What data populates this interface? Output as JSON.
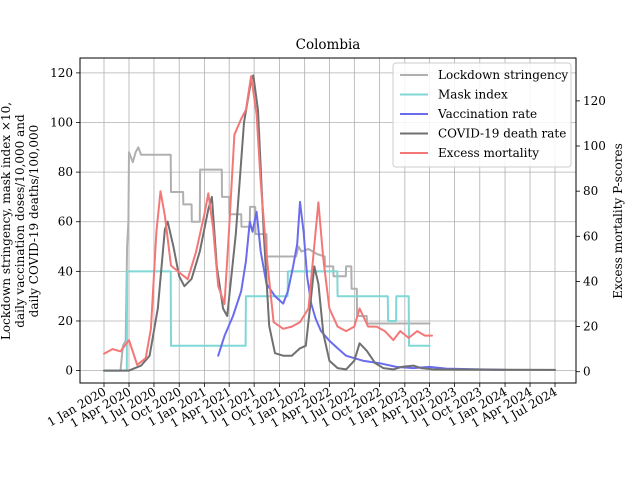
{
  "chart_data": {
    "type": "line",
    "title": "Colombia",
    "ylabel_left": "Lockdown stringency, mask index ×10,\ndaily vaccination doses/10,000 and\ndaily COVID-19 deaths/100,000",
    "ylabel_right": "Excess mortality P-scores",
    "left_ylim": [
      -5,
      126
    ],
    "right_ylim": [
      -5,
      139
    ],
    "x_ticks": [
      "1 Jan 2020",
      "1 Apr 2020",
      "1 Jul 2020",
      "1 Oct 2020",
      "1 Jan 2021",
      "1 Apr 2021",
      "1 Jul 2021",
      "1 Oct 2021",
      "1 Jan 2022",
      "1 Apr 2022",
      "1 Jul 2022",
      "1 Oct 2022",
      "1 Jan 2023",
      "1 Apr 2023",
      "1 Jul 2023",
      "1 Oct 2023",
      "1 Jan 2024",
      "1 Apr 2024",
      "1 Jul 2024"
    ],
    "left_y_ticks": [
      "0",
      "20",
      "40",
      "60",
      "80",
      "100",
      "120"
    ],
    "right_y_ticks": [
      "0",
      "20",
      "40",
      "60",
      "80",
      "100",
      "120"
    ],
    "grid": true,
    "legend_position": "top-right",
    "series": [
      {
        "name": "Lockdown stringency",
        "axis": "left",
        "color": "#b0b0b0",
        "points": [
          [
            "2020-01-01",
            0
          ],
          [
            "2020-03-01",
            0
          ],
          [
            "2020-03-10",
            10
          ],
          [
            "2020-03-20",
            12
          ],
          [
            "2020-03-25",
            50
          ],
          [
            "2020-03-30",
            60
          ],
          [
            "2020-04-01",
            88
          ],
          [
            "2020-04-15",
            84
          ],
          [
            "2020-04-25",
            88
          ],
          [
            "2020-05-05",
            90
          ],
          [
            "2020-05-15",
            87
          ],
          [
            "2020-08-31",
            87
          ],
          [
            "2020-09-01",
            72
          ],
          [
            "2020-10-15",
            72
          ],
          [
            "2020-10-16",
            67
          ],
          [
            "2020-11-15",
            67
          ],
          [
            "2020-11-16",
            60
          ],
          [
            "2020-12-15",
            60
          ],
          [
            "2020-12-16",
            81
          ],
          [
            "2021-03-05",
            81
          ],
          [
            "2021-03-06",
            70
          ],
          [
            "2021-04-01",
            70
          ],
          [
            "2021-04-02",
            63
          ],
          [
            "2021-05-15",
            63
          ],
          [
            "2021-05-16",
            58
          ],
          [
            "2021-06-15",
            58
          ],
          [
            "2021-06-16",
            66
          ],
          [
            "2021-07-05",
            66
          ],
          [
            "2021-07-06",
            55
          ],
          [
            "2021-08-15",
            55
          ],
          [
            "2021-08-16",
            46
          ],
          [
            "2021-12-01",
            46
          ],
          [
            "2021-12-10",
            50
          ],
          [
            "2021-12-20",
            48
          ],
          [
            "2022-01-15",
            49
          ],
          [
            "2022-02-15",
            47
          ],
          [
            "2022-03-15",
            46
          ],
          [
            "2022-03-16",
            42
          ],
          [
            "2022-04-15",
            42
          ],
          [
            "2022-04-16",
            38
          ],
          [
            "2022-05-31",
            38
          ],
          [
            "2022-06-01",
            42
          ],
          [
            "2022-06-20",
            42
          ],
          [
            "2022-06-21",
            33
          ],
          [
            "2022-07-10",
            33
          ],
          [
            "2022-07-11",
            22
          ],
          [
            "2022-08-15",
            22
          ],
          [
            "2022-08-16",
            19
          ],
          [
            "2023-04-01",
            19
          ]
        ]
      },
      {
        "name": "Mask index",
        "axis": "left",
        "color": "#7fd8d5",
        "points": [
          [
            "2020-01-01",
            0
          ],
          [
            "2020-03-24",
            0
          ],
          [
            "2020-03-25",
            40
          ],
          [
            "2020-08-31",
            40
          ],
          [
            "2020-09-01",
            10
          ],
          [
            "2021-05-31",
            10
          ],
          [
            "2021-06-01",
            30
          ],
          [
            "2021-10-31",
            30
          ],
          [
            "2021-11-01",
            40
          ],
          [
            "2022-04-30",
            40
          ],
          [
            "2022-05-01",
            30
          ],
          [
            "2022-10-31",
            30
          ],
          [
            "2022-11-01",
            20
          ],
          [
            "2022-11-30",
            20
          ],
          [
            "2022-12-01",
            30
          ],
          [
            "2023-01-15",
            30
          ],
          [
            "2023-01-16",
            10
          ],
          [
            "2023-04-01",
            10
          ]
        ]
      },
      {
        "name": "Vaccination rate",
        "axis": "left",
        "color": "#6b6bee",
        "points": [
          [
            "2021-02-20",
            6
          ],
          [
            "2021-03-15",
            14
          ],
          [
            "2021-04-15",
            22
          ],
          [
            "2021-05-15",
            32
          ],
          [
            "2021-06-01",
            44
          ],
          [
            "2021-06-15",
            60
          ],
          [
            "2021-06-25",
            56
          ],
          [
            "2021-07-10",
            64
          ],
          [
            "2021-07-25",
            48
          ],
          [
            "2021-08-15",
            35
          ],
          [
            "2021-09-15",
            30
          ],
          [
            "2021-10-15",
            27
          ],
          [
            "2021-11-01",
            32
          ],
          [
            "2021-11-20",
            42
          ],
          [
            "2021-12-05",
            51
          ],
          [
            "2021-12-15",
            68
          ],
          [
            "2021-12-28",
            56
          ],
          [
            "2022-01-10",
            38
          ],
          [
            "2022-01-25",
            27
          ],
          [
            "2022-02-10",
            21
          ],
          [
            "2022-03-01",
            16
          ],
          [
            "2022-04-01",
            12
          ],
          [
            "2022-05-01",
            9
          ],
          [
            "2022-06-01",
            6
          ],
          [
            "2022-07-01",
            5
          ],
          [
            "2022-08-01",
            4
          ],
          [
            "2022-10-01",
            3
          ],
          [
            "2022-12-01",
            1.5
          ],
          [
            "2023-02-01",
            1
          ],
          [
            "2023-04-01",
            1.5
          ],
          [
            "2023-06-01",
            0.8
          ],
          [
            "2023-10-01",
            0.5
          ],
          [
            "2024-01-01",
            0.3
          ]
        ]
      },
      {
        "name": "COVID-19 death rate",
        "axis": "left",
        "color": "#707070",
        "points": [
          [
            "2020-01-01",
            0
          ],
          [
            "2020-04-01",
            0
          ],
          [
            "2020-05-15",
            2
          ],
          [
            "2020-06-15",
            6
          ],
          [
            "2020-07-15",
            25
          ],
          [
            "2020-08-10",
            57
          ],
          [
            "2020-08-20",
            60
          ],
          [
            "2020-09-10",
            50
          ],
          [
            "2020-10-01",
            38
          ],
          [
            "2020-10-20",
            34
          ],
          [
            "2020-11-15",
            37
          ],
          [
            "2020-12-15",
            48
          ],
          [
            "2021-01-15",
            65
          ],
          [
            "2021-01-28",
            70
          ],
          [
            "2021-02-15",
            42
          ],
          [
            "2021-03-10",
            25
          ],
          [
            "2021-03-25",
            22
          ],
          [
            "2021-04-25",
            55
          ],
          [
            "2021-05-25",
            100
          ],
          [
            "2021-06-20",
            117
          ],
          [
            "2021-06-28",
            119
          ],
          [
            "2021-07-15",
            105
          ],
          [
            "2021-08-05",
            55
          ],
          [
            "2021-08-25",
            18
          ],
          [
            "2021-09-15",
            7
          ],
          [
            "2021-10-15",
            6
          ],
          [
            "2021-11-15",
            6
          ],
          [
            "2021-12-15",
            9
          ],
          [
            "2022-01-05",
            10
          ],
          [
            "2022-01-20",
            25
          ],
          [
            "2022-02-05",
            42
          ],
          [
            "2022-02-20",
            35
          ],
          [
            "2022-03-10",
            15
          ],
          [
            "2022-04-01",
            4
          ],
          [
            "2022-05-01",
            1
          ],
          [
            "2022-06-01",
            0.5
          ],
          [
            "2022-07-01",
            4
          ],
          [
            "2022-07-20",
            11
          ],
          [
            "2022-08-15",
            8
          ],
          [
            "2022-09-15",
            3
          ],
          [
            "2022-10-15",
            1
          ],
          [
            "2022-11-20",
            0.5
          ],
          [
            "2022-12-20",
            1.5
          ],
          [
            "2023-02-01",
            2
          ],
          [
            "2023-03-01",
            1
          ],
          [
            "2023-04-15",
            0.5
          ],
          [
            "2024-07-01",
            0.3
          ]
        ]
      },
      {
        "name": "Excess mortality",
        "axis": "right",
        "color": "#f47777",
        "points": [
          [
            "2020-01-01",
            8
          ],
          [
            "2020-02-01",
            10
          ],
          [
            "2020-03-01",
            9
          ],
          [
            "2020-04-01",
            14
          ],
          [
            "2020-05-01",
            3
          ],
          [
            "2020-06-01",
            6
          ],
          [
            "2020-06-20",
            19
          ],
          [
            "2020-07-10",
            62
          ],
          [
            "2020-07-25",
            80
          ],
          [
            "2020-08-10",
            69
          ],
          [
            "2020-09-01",
            47
          ],
          [
            "2020-10-01",
            44
          ],
          [
            "2020-11-01",
            41
          ],
          [
            "2020-12-01",
            53
          ],
          [
            "2021-01-01",
            70
          ],
          [
            "2021-01-15",
            79
          ],
          [
            "2021-02-01",
            64
          ],
          [
            "2021-02-20",
            38
          ],
          [
            "2021-03-15",
            30
          ],
          [
            "2021-04-01",
            64
          ],
          [
            "2021-04-20",
            105
          ],
          [
            "2021-05-15",
            112
          ],
          [
            "2021-06-01",
            116
          ],
          [
            "2021-06-20",
            131
          ],
          [
            "2021-07-10",
            114
          ],
          [
            "2021-07-25",
            84
          ],
          [
            "2021-08-15",
            52
          ],
          [
            "2021-09-10",
            22
          ],
          [
            "2021-10-15",
            19
          ],
          [
            "2021-11-15",
            20
          ],
          [
            "2021-12-15",
            22
          ],
          [
            "2022-01-15",
            28
          ],
          [
            "2022-02-05",
            56
          ],
          [
            "2022-02-20",
            75
          ],
          [
            "2022-03-10",
            50
          ],
          [
            "2022-04-01",
            28
          ],
          [
            "2022-05-01",
            20
          ],
          [
            "2022-06-01",
            18
          ],
          [
            "2022-07-01",
            20
          ],
          [
            "2022-07-20",
            28
          ],
          [
            "2022-08-20",
            20
          ],
          [
            "2022-09-20",
            20
          ],
          [
            "2022-10-20",
            18
          ],
          [
            "2022-11-20",
            14
          ],
          [
            "2022-12-15",
            18
          ],
          [
            "2023-01-15",
            15
          ],
          [
            "2023-02-15",
            18
          ],
          [
            "2023-03-15",
            16
          ],
          [
            "2023-04-10",
            16
          ]
        ]
      }
    ]
  }
}
